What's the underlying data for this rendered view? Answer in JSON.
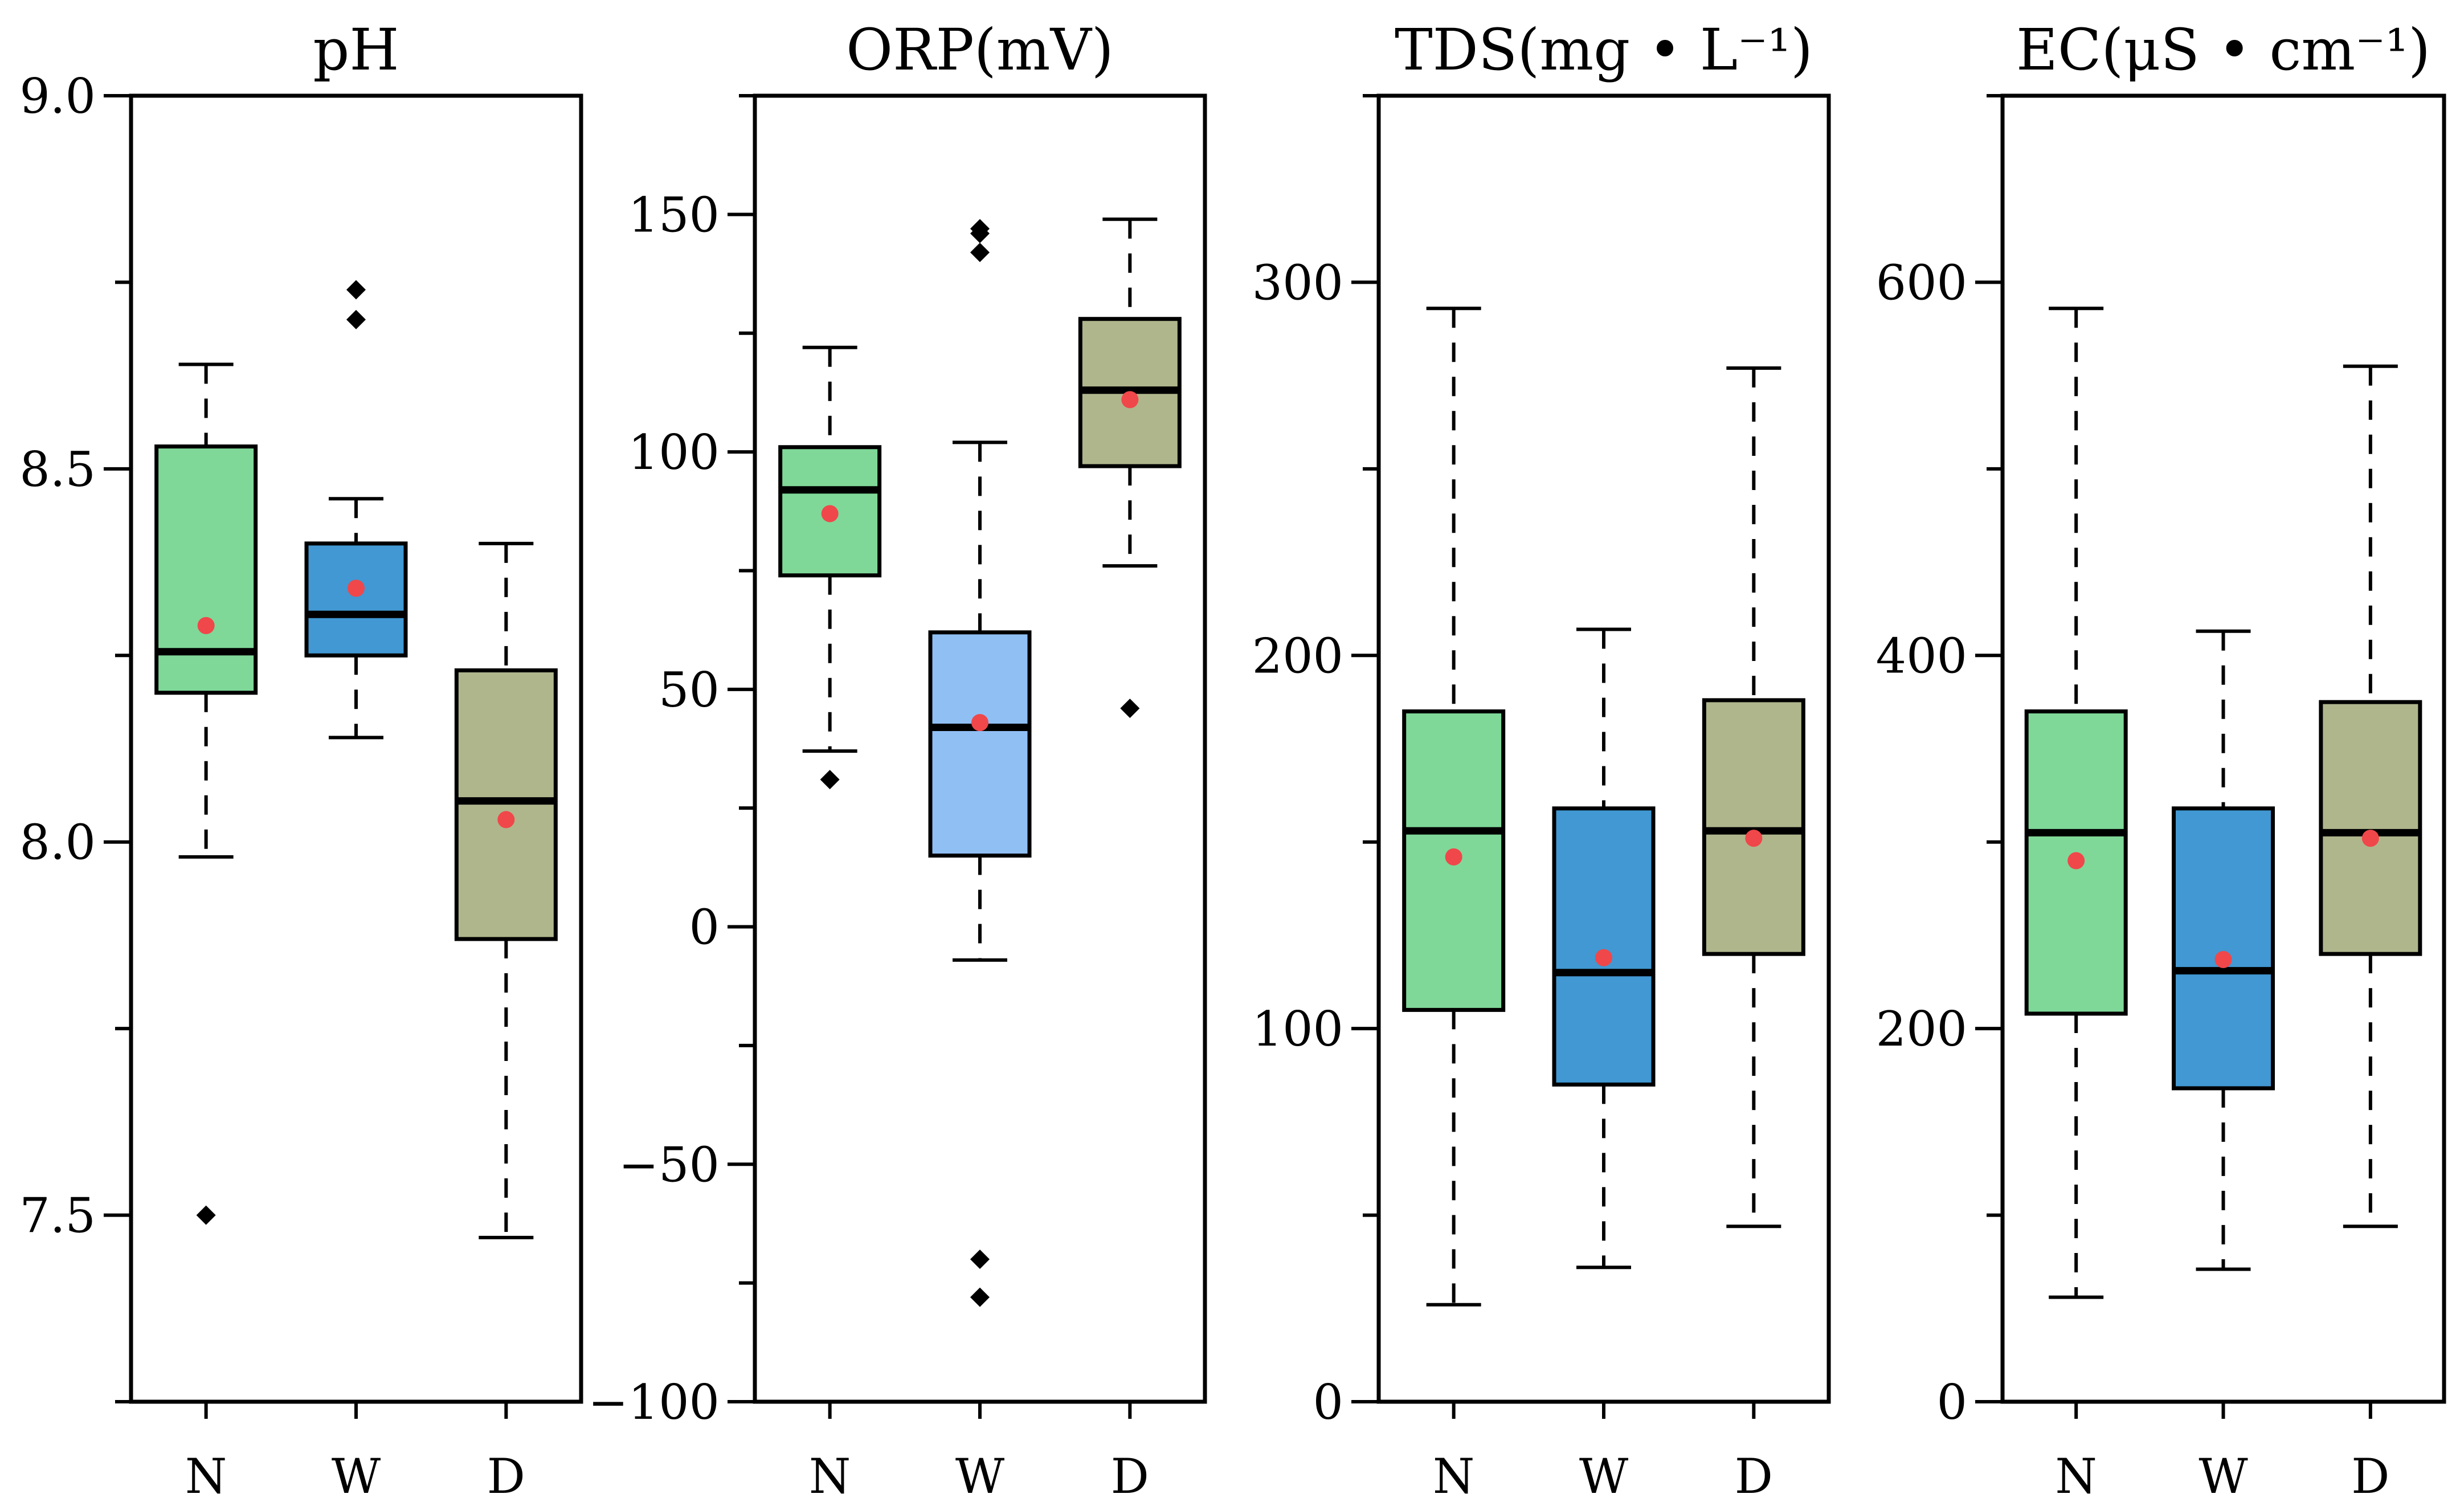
{
  "colors": {
    "N": "#7fd898",
    "W": "#4198d2",
    "W_light": "#90bff4",
    "D": "#afb68c",
    "mean_dot": "#f0474a",
    "stroke": "#000000"
  },
  "chart_data": [
    {
      "type": "box",
      "title": "pH",
      "ylim": [
        7.25,
        9.0
      ],
      "yticks": [
        7.5,
        8.0,
        8.5,
        9.0
      ],
      "ytick_labels": [
        "7.5",
        "8.0",
        "8.5",
        "9.0"
      ],
      "categories": [
        "N",
        "W",
        "D"
      ],
      "boxes": [
        {
          "category": "N",
          "whisker_low": 7.98,
          "q1": 8.2,
          "median": 8.255,
          "q3": 8.53,
          "whisker_high": 8.64,
          "mean": 8.29,
          "outliers": [
            7.5
          ],
          "color_key": "N"
        },
        {
          "category": "W",
          "whisker_low": 8.14,
          "q1": 8.25,
          "median": 8.305,
          "q3": 8.4,
          "whisker_high": 8.46,
          "mean": 8.34,
          "outliers": [
            8.7,
            8.74
          ],
          "color_key": "W"
        },
        {
          "category": "D",
          "whisker_low": 7.47,
          "q1": 7.87,
          "median": 8.055,
          "q3": 8.23,
          "whisker_high": 8.4,
          "mean": 8.03,
          "outliers": [],
          "color_key": "D"
        }
      ]
    },
    {
      "type": "box",
      "title": "ORP(mV)",
      "ylim": [
        -100,
        175
      ],
      "yticks": [
        -100,
        -50,
        0,
        50,
        100,
        150
      ],
      "ytick_labels": [
        "−100",
        "−50",
        "0",
        "50",
        "100",
        "150"
      ],
      "categories": [
        "N",
        "W",
        "D"
      ],
      "boxes": [
        {
          "category": "N",
          "whisker_low": 37,
          "q1": 74,
          "median": 92,
          "q3": 101,
          "whisker_high": 122,
          "mean": 87,
          "outliers": [
            31
          ],
          "color_key": "N"
        },
        {
          "category": "W",
          "whisker_low": -7,
          "q1": 15,
          "median": 42,
          "q3": 62,
          "whisker_high": 102,
          "mean": 43,
          "outliers": [
            -78,
            -70,
            142,
            146,
            147
          ],
          "color_key": "W_light"
        },
        {
          "category": "D",
          "whisker_low": 76,
          "q1": 97,
          "median": 113,
          "q3": 128,
          "whisker_high": 149,
          "mean": 111,
          "outliers": [
            46
          ],
          "color_key": "D"
        }
      ]
    },
    {
      "type": "box",
      "title": "TDS(mg • L⁻¹)",
      "ylim": [
        0,
        350
      ],
      "yticks": [
        0,
        100,
        200,
        300
      ],
      "ytick_labels": [
        "0",
        "100",
        "200",
        "300"
      ],
      "categories": [
        "N",
        "W",
        "D"
      ],
      "boxes": [
        {
          "category": "N",
          "whisker_low": 26,
          "q1": 105,
          "median": 153,
          "q3": 185,
          "whisker_high": 293,
          "mean": 146,
          "outliers": [],
          "color_key": "N"
        },
        {
          "category": "W",
          "whisker_low": 36,
          "q1": 85,
          "median": 115,
          "q3": 159,
          "whisker_high": 207,
          "mean": 119,
          "outliers": [],
          "color_key": "W"
        },
        {
          "category": "D",
          "whisker_low": 47,
          "q1": 120,
          "median": 153,
          "q3": 188,
          "whisker_high": 277,
          "mean": 151,
          "outliers": [],
          "color_key": "D"
        }
      ]
    },
    {
      "type": "box",
      "title": "EC(μS • cm⁻¹)",
      "ylim": [
        0,
        700
      ],
      "yticks": [
        0,
        200,
        400,
        600
      ],
      "ytick_labels": [
        "0",
        "200",
        "400",
        "600"
      ],
      "categories": [
        "N",
        "W",
        "D"
      ],
      "boxes": [
        {
          "category": "N",
          "whisker_low": 56,
          "q1": 208,
          "median": 305,
          "q3": 370,
          "whisker_high": 586,
          "mean": 290,
          "outliers": [],
          "color_key": "N"
        },
        {
          "category": "W",
          "whisker_low": 71,
          "q1": 168,
          "median": 231,
          "q3": 318,
          "whisker_high": 413,
          "mean": 237,
          "outliers": [],
          "color_key": "W"
        },
        {
          "category": "D",
          "whisker_low": 94,
          "q1": 240,
          "median": 305,
          "q3": 375,
          "whisker_high": 555,
          "mean": 302,
          "outliers": [],
          "color_key": "D"
        }
      ]
    }
  ]
}
